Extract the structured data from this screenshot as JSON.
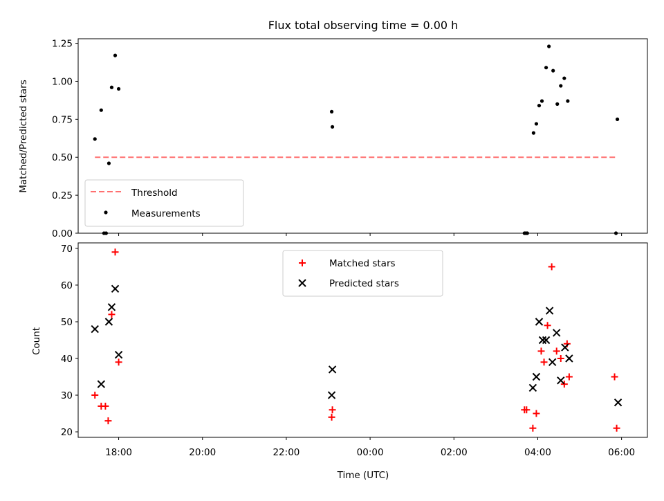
{
  "title": "Flux total observing time = 0.00 h",
  "xlabel": "Time (UTC)",
  "x_tick_labels": [
    "18:00",
    "20:00",
    "22:00",
    "00:00",
    "02:00",
    "04:00",
    "06:00"
  ],
  "colors": {
    "threshold": "#ff7070",
    "measurements": "#000000",
    "matched": "#ff0000",
    "predicted": "#000000"
  },
  "chart_data": [
    {
      "type": "scatter",
      "ylabel": "Matched/Predicted stars",
      "xlim": [
        "17:02",
        "06:37"
      ],
      "ylim": [
        0,
        1.28
      ],
      "y_tick_labels": [
        "0.00",
        "0.25",
        "0.50",
        "0.75",
        "1.00",
        "1.25"
      ],
      "legend": {
        "placement": "lower-left",
        "entries": [
          "Threshold",
          "Measurements"
        ]
      },
      "threshold": {
        "name": "Threshold",
        "value": 0.5,
        "x_range": [
          "17:26",
          "05:54"
        ]
      },
      "series": [
        {
          "name": "Measurements",
          "x": [
            "17:26",
            "17:35",
            "17:39",
            "17:42",
            "17:46",
            "17:50",
            "17:55",
            "18:00",
            "23:05",
            "23:06",
            "03:41",
            "03:43",
            "03:45",
            "03:54",
            "03:58",
            "04:02",
            "04:06",
            "04:12",
            "04:16",
            "04:22",
            "04:28",
            "04:33",
            "04:38",
            "04:43",
            "05:52",
            "05:54"
          ],
          "y": [
            0.62,
            0.81,
            0,
            0,
            0.46,
            0.96,
            1.17,
            0.95,
            0.8,
            0.7,
            0,
            0,
            0,
            0.66,
            0.72,
            0.84,
            0.87,
            1.09,
            1.23,
            1.07,
            0.85,
            0.97,
            1.02,
            0.87,
            0,
            0.75
          ]
        }
      ]
    },
    {
      "type": "scatter",
      "ylabel": "Count",
      "xlim": [
        "17:02",
        "06:37"
      ],
      "ylim": [
        18.5,
        71.5
      ],
      "y_tick_labels": [
        "20",
        "30",
        "40",
        "50",
        "60",
        "70"
      ],
      "legend": {
        "placement": "upper-center",
        "entries": [
          "Matched stars",
          "Predicted stars"
        ]
      },
      "series": [
        {
          "name": "Matched stars",
          "marker": "plus",
          "x": [
            "17:26",
            "17:35",
            "17:41",
            "17:45",
            "17:50",
            "17:55",
            "18:00",
            "23:05",
            "23:06",
            "03:41",
            "03:44",
            "03:53",
            "03:58",
            "04:05",
            "04:09",
            "04:14",
            "04:20",
            "04:27",
            "04:33",
            "04:38",
            "04:42",
            "04:45",
            "05:50",
            "05:53"
          ],
          "y": [
            30,
            27,
            27,
            23,
            52,
            69,
            39,
            24,
            26,
            26,
            26,
            21,
            25,
            42,
            39,
            49,
            65,
            42,
            40,
            33,
            44,
            35,
            35,
            21
          ]
        },
        {
          "name": "Predicted stars",
          "marker": "x",
          "x": [
            "17:26",
            "17:35",
            "17:46",
            "17:50",
            "17:55",
            "18:00",
            "23:05",
            "23:06",
            "03:53",
            "03:58",
            "04:02",
            "04:07",
            "04:12",
            "04:17",
            "04:21",
            "04:27",
            "04:33",
            "04:39",
            "04:45",
            "05:55"
          ],
          "y": [
            48,
            33,
            50,
            54,
            59,
            41,
            30,
            37,
            32,
            35,
            50,
            45,
            45,
            53,
            39,
            47,
            34,
            43,
            40,
            28
          ]
        }
      ]
    }
  ]
}
